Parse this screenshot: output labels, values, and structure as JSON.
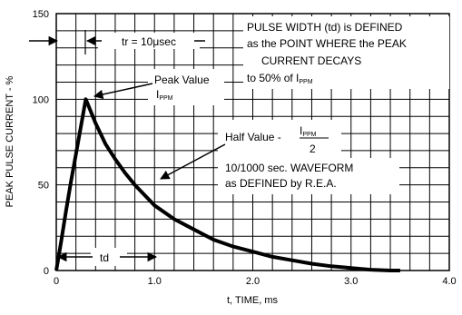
{
  "chart_data": {
    "type": "line",
    "title": "",
    "xlabel": "t, TIME, ms",
    "ylabel": "PEAK PULSE CURRENT - %",
    "xlim": [
      0,
      4.0
    ],
    "ylim": [
      0,
      150
    ],
    "x_ticks": [
      "0",
      "1.0",
      "2.0",
      "3.0",
      "4.0"
    ],
    "y_ticks": [
      "0",
      "50",
      "100",
      "150"
    ],
    "grid": true,
    "series": [
      {
        "x": [
          0,
          0.05,
          0.1,
          0.15,
          0.2,
          0.25,
          0.3,
          0.4,
          0.5,
          0.6,
          0.7,
          0.8,
          0.9,
          1.0,
          1.2,
          1.4,
          1.6,
          1.8,
          2.0,
          2.2,
          2.4,
          2.6,
          2.8,
          3.0,
          3.2,
          3.4,
          3.5
        ],
        "values": [
          0,
          17,
          35,
          52,
          68,
          84,
          100,
          86,
          74,
          65,
          57,
          50,
          44,
          38,
          30,
          24,
          18,
          14,
          11,
          8,
          6,
          4,
          2.5,
          1.5,
          0.5,
          0,
          0
        ]
      }
    ],
    "annotations": {
      "tr_label": "tr = 10μsec",
      "pulse_width_lines": [
        "PULSE WIDTH (td) is DEFINED",
        "as the POINT WHERE the PEAK",
        "CURRENT DECAYS"
      ],
      "pulse_width_prefix": "to 50% of I",
      "pulse_width_sub": "PPM",
      "peak_label": "Peak Value",
      "peak_symbol": "I",
      "peak_sub": "PPM",
      "half_label": "Half Value -",
      "half_num": "I",
      "half_num_sub": "PPM",
      "half_den": "2",
      "waveform_lines": [
        "10/1000 sec. WAVEFORM",
        "as DEFINED by R.E.A."
      ],
      "td_label": "td"
    }
  }
}
